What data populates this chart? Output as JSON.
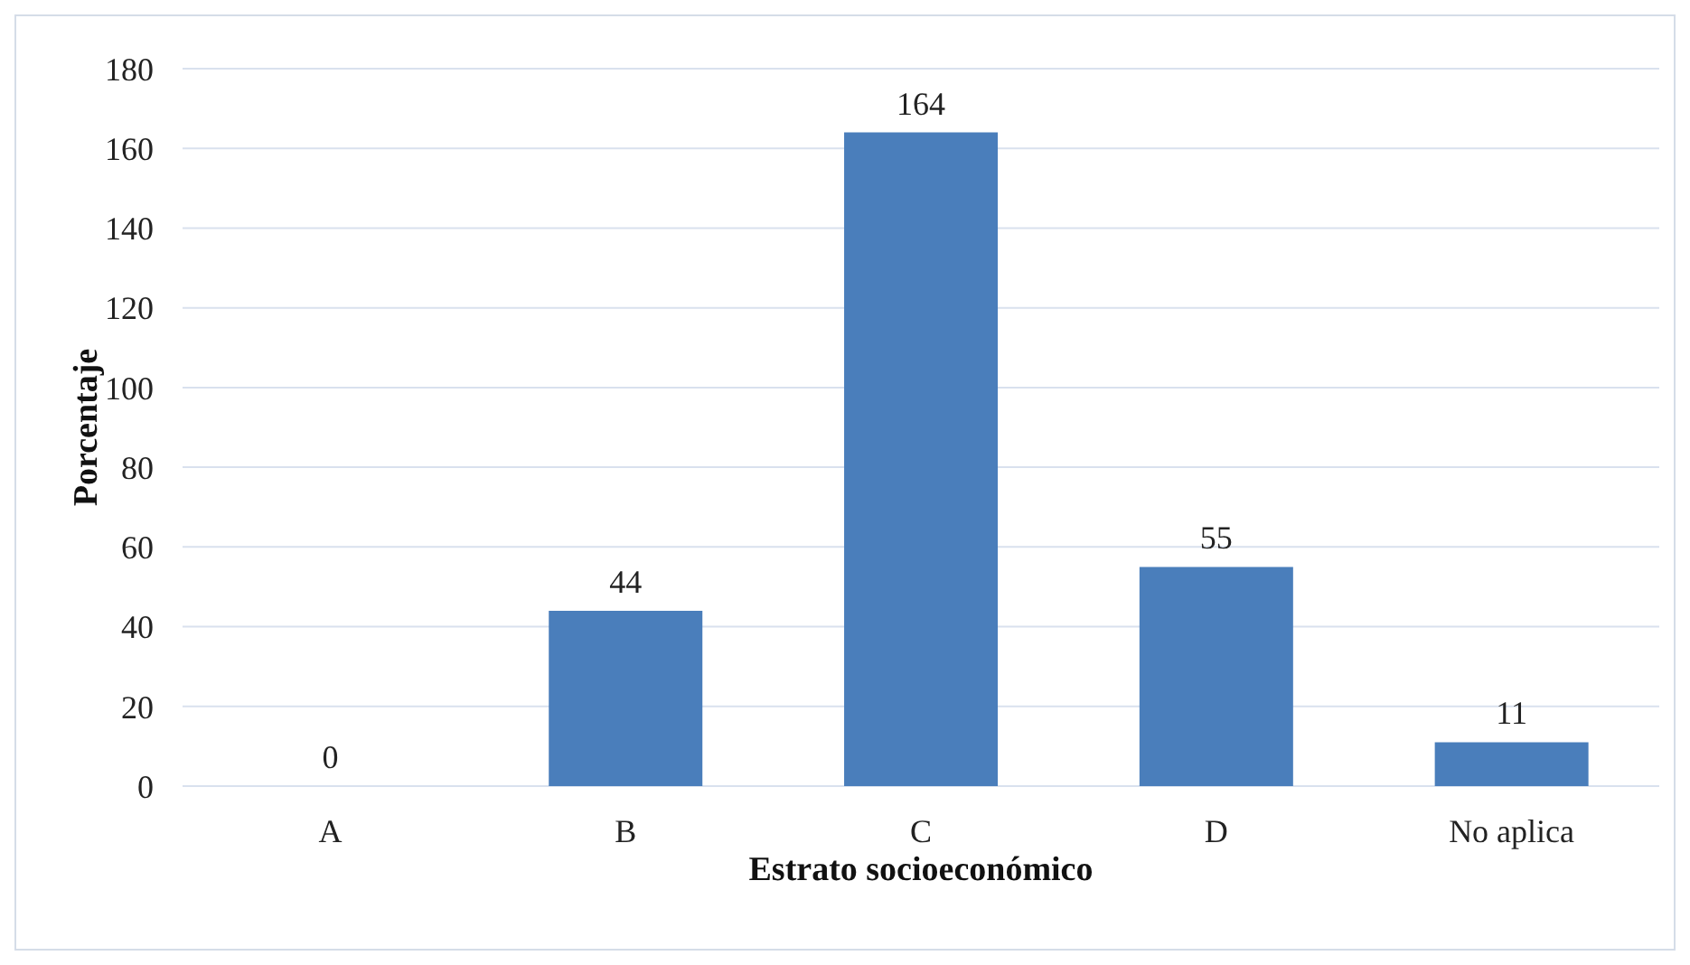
{
  "chart_data": {
    "type": "bar",
    "xlabel": "Estrato socioeconómico",
    "ylabel": "Porcentaje",
    "categories": [
      "A",
      "B",
      "C",
      "D",
      "No aplica"
    ],
    "values": [
      0,
      44,
      164,
      55,
      11
    ],
    "color": "#4a7ebb",
    "ylim": [
      0,
      180
    ],
    "yticks": [
      0,
      20,
      40,
      60,
      80,
      100,
      120,
      140,
      160,
      180
    ],
    "grid": "y",
    "data_labels": true,
    "legend": false
  }
}
